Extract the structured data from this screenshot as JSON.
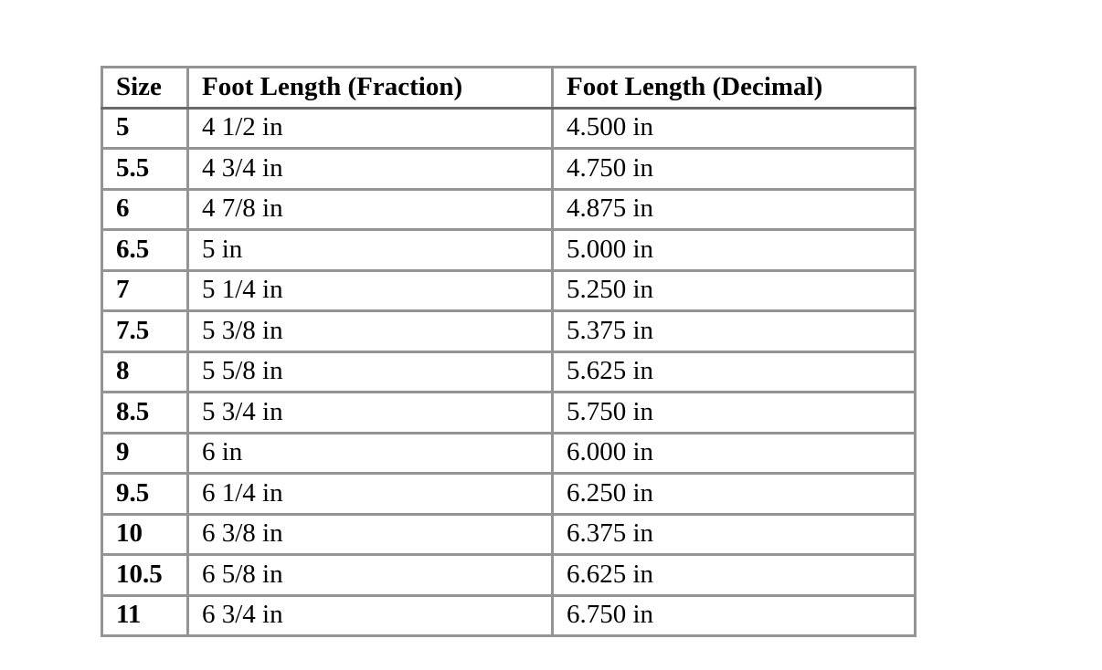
{
  "table": {
    "columns": [
      "Size",
      "Foot Length (Fraction)",
      "Foot Length (Decimal)"
    ],
    "rows": [
      {
        "size": "5",
        "fraction": "4 1/2 in",
        "decimal": "4.500 in"
      },
      {
        "size": "5.5",
        "fraction": "4 3/4 in",
        "decimal": "4.750 in"
      },
      {
        "size": "6",
        "fraction": "4 7/8 in",
        "decimal": "4.875 in"
      },
      {
        "size": "6.5",
        "fraction": "5 in",
        "decimal": "5.000 in"
      },
      {
        "size": "7",
        "fraction": "5 1/4 in",
        "decimal": "5.250 in"
      },
      {
        "size": "7.5",
        "fraction": "5 3/8 in",
        "decimal": "5.375 in"
      },
      {
        "size": "8",
        "fraction": "5 5/8 in",
        "decimal": "5.625 in"
      },
      {
        "size": "8.5",
        "fraction": "5 3/4 in",
        "decimal": "5.750 in"
      },
      {
        "size": "9",
        "fraction": "6 in",
        "decimal": "6.000 in"
      },
      {
        "size": "9.5",
        "fraction": "6 1/4 in",
        "decimal": "6.250 in"
      },
      {
        "size": "10",
        "fraction": "6 3/8 in",
        "decimal": "6.375 in"
      },
      {
        "size": "10.5",
        "fraction": "6 5/8 in",
        "decimal": "6.625 in"
      },
      {
        "size": "11",
        "fraction": "6 3/4 in",
        "decimal": "6.750 in"
      }
    ]
  }
}
